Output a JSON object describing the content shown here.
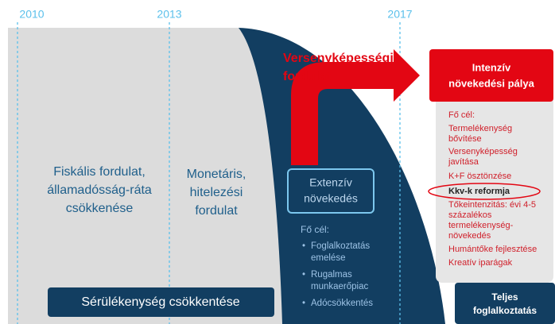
{
  "years": [
    "2010",
    "2013",
    "2017"
  ],
  "fiscal": [
    "Fiskális fordulat,",
    "államadósság-ráta",
    "csökkenése"
  ],
  "monetary": [
    "Monetáris,",
    "hitelezési",
    "fordulat"
  ],
  "vulnerability": "Sérülékenység csökkentése",
  "turn": [
    "Versenyképességi",
    "fordulat"
  ],
  "extensive": {
    "title": [
      "Extenzív",
      "növekedés"
    ],
    "goal_heading": "Fő cél:",
    "goals": [
      [
        "Foglalkoztatás",
        "emelése"
      ],
      [
        "Rugalmas",
        "munkaerőpiac"
      ],
      [
        "Adócsökkentés"
      ]
    ]
  },
  "intensive": {
    "title": [
      "Intenzív",
      "növekedési pálya"
    ],
    "goal_heading": "Fő cél:",
    "goals": [
      [
        "Termelékenység",
        "bővítése"
      ],
      [
        "Versenyképesség",
        "javítása"
      ],
      [
        "K+F ösztönzése"
      ],
      [
        "Kkv-k reformja"
      ],
      [
        "Tőkeintenzitás: évi 4-5",
        "százalékos",
        "termelékenység-",
        "növekedés"
      ],
      [
        "Humántőke fejlesztése"
      ],
      [
        "Kreatív iparágak"
      ]
    ]
  },
  "full_employment": [
    "Teljes",
    "foglalkoztatás"
  ]
}
